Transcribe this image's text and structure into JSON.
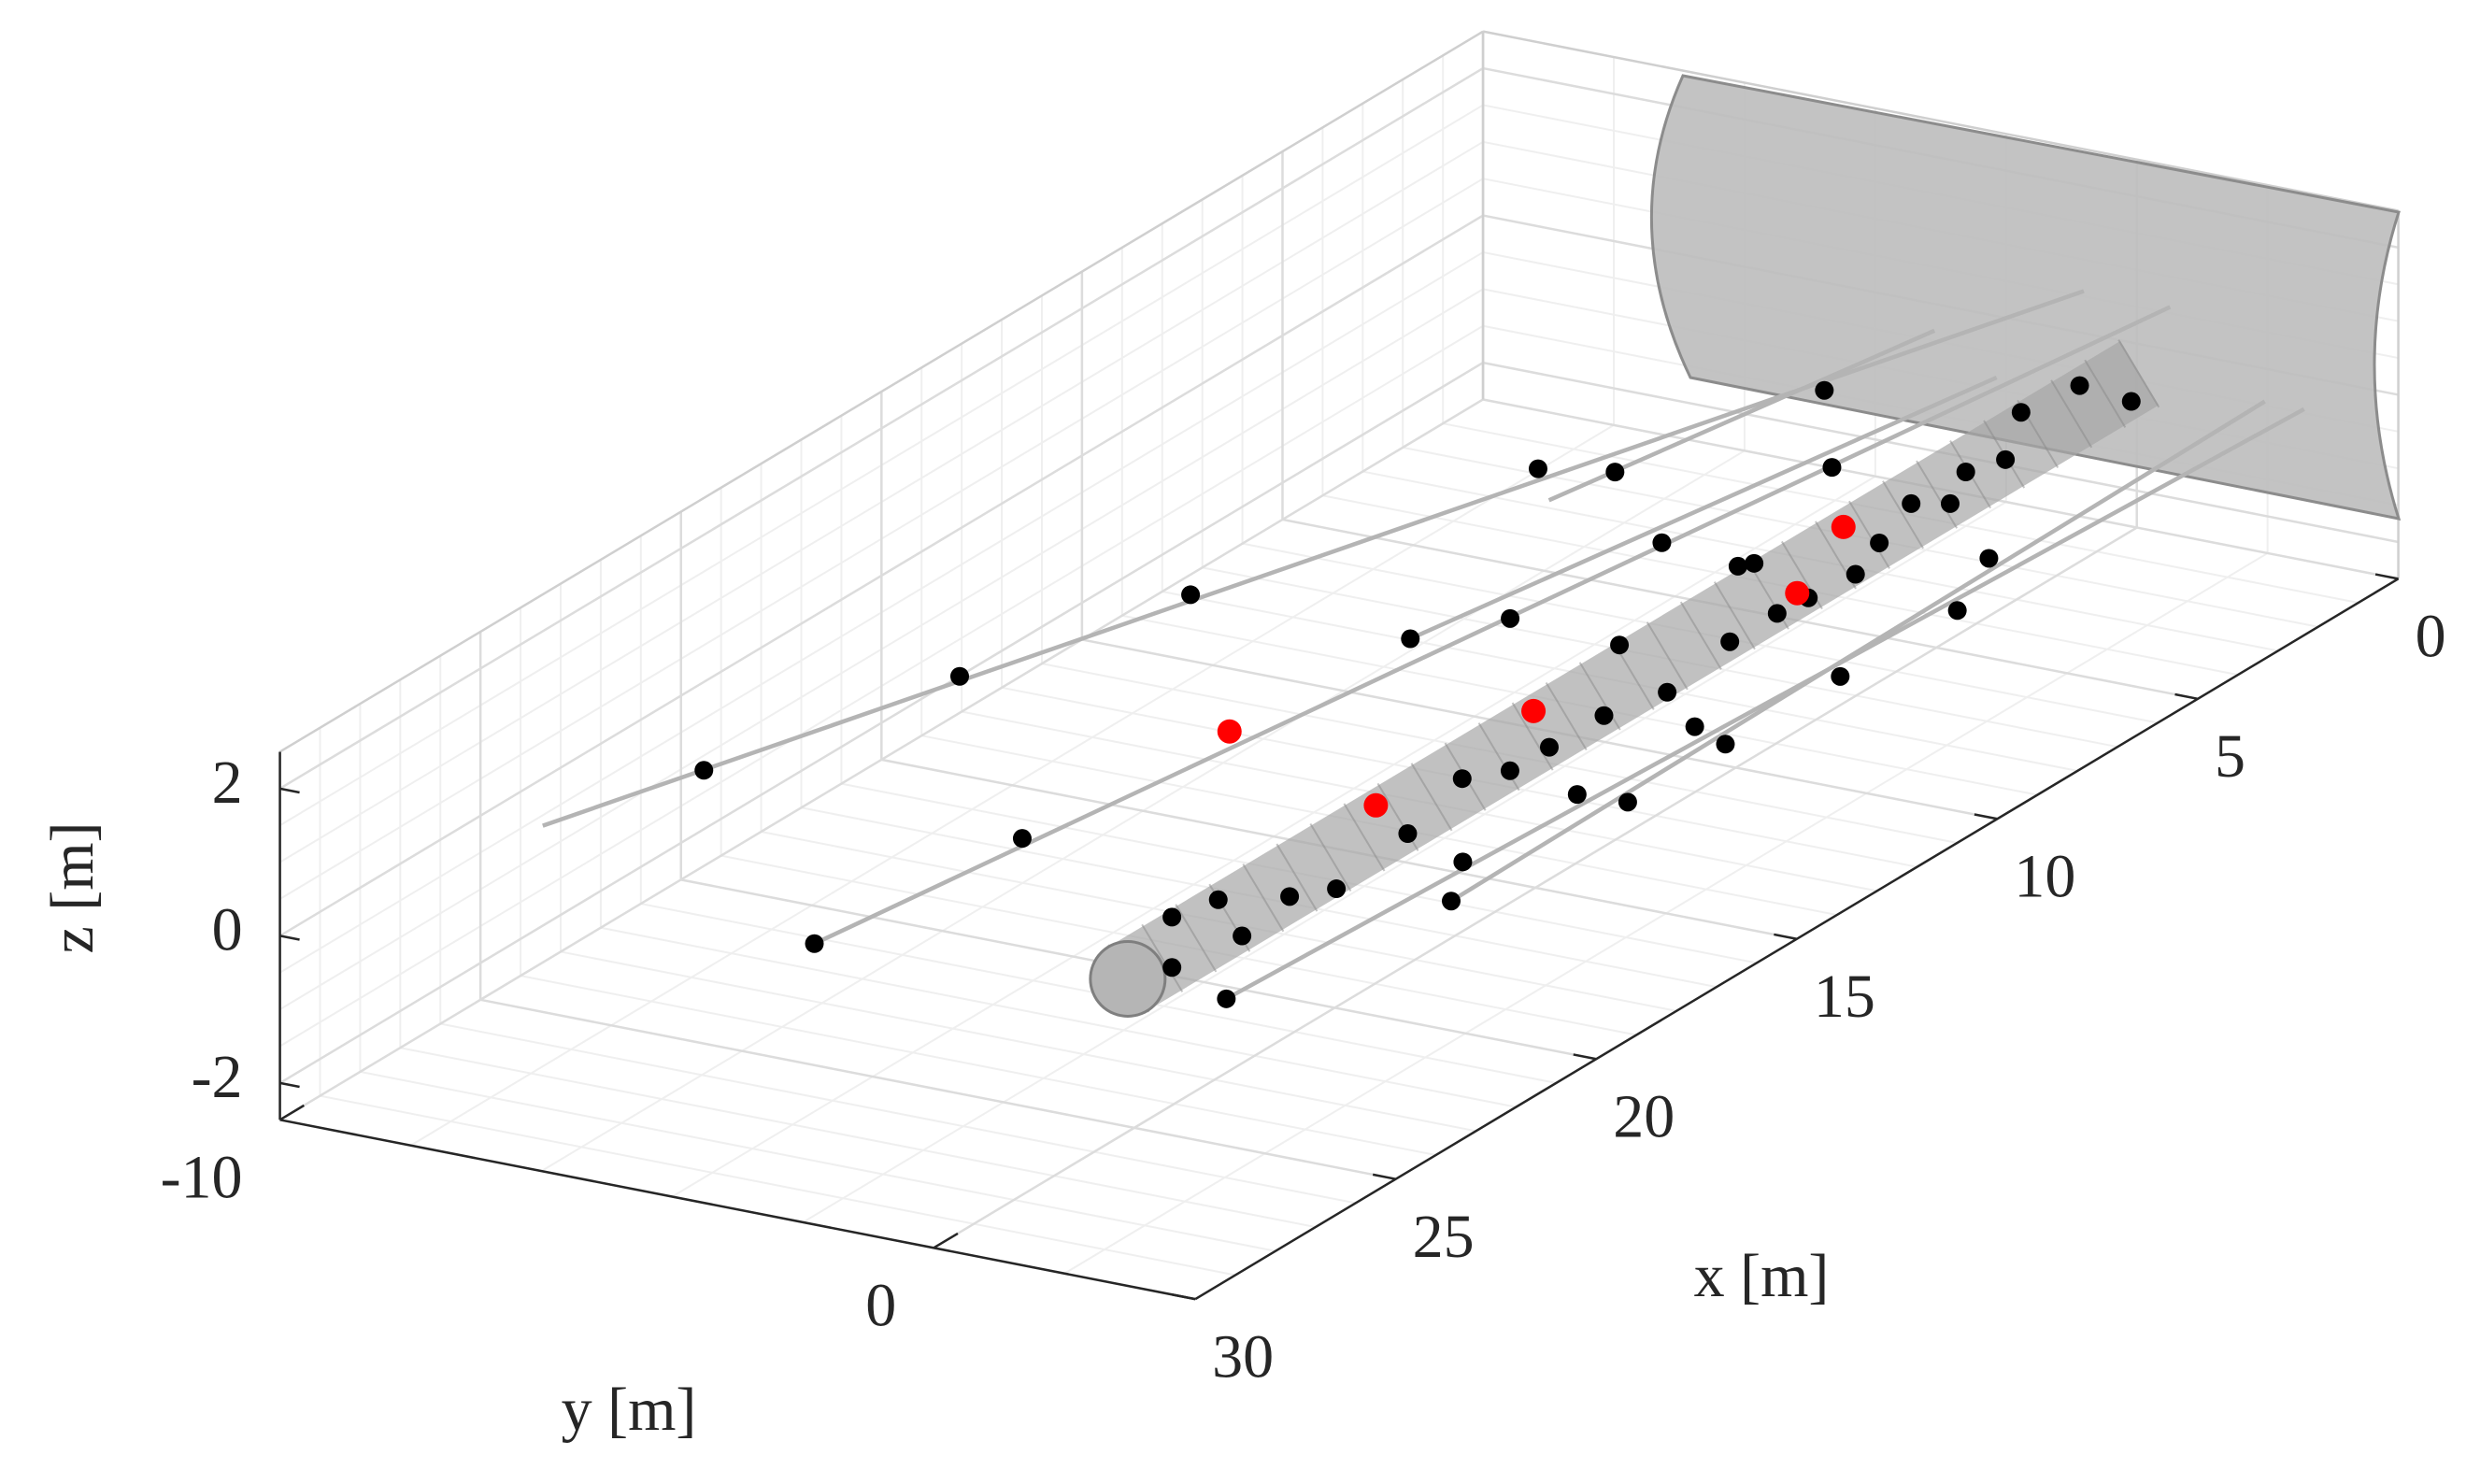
{
  "chart_data": {
    "type": "scatter3d",
    "xlabel": "x [m]",
    "ylabel": "y [m]",
    "zlabel": "z [m]",
    "xlim": [
      0,
      30
    ],
    "ylim": [
      -10,
      4
    ],
    "zlim": [
      -2.5,
      2.5
    ],
    "xticks": [
      0,
      5,
      10,
      15,
      20,
      25,
      30
    ],
    "yticks": [
      -10,
      0
    ],
    "zticks": [
      -2,
      0,
      2
    ],
    "grid": true,
    "series": [
      {
        "mode": "line",
        "color": "#b4b4b4",
        "x": [
          -1.32,
          24.93
        ],
        "y": [
          -1.62,
          -9.09
        ],
        "z": [
          0,
          0
        ]
      },
      {
        "mode": "line",
        "color": "#b4b4b4",
        "x": [
          0.84,
          8.53
        ],
        "y": [
          -2.58,
          -3.76
        ],
        "z": [
          0,
          0
        ]
      },
      {
        "mode": "line",
        "color": "#b4b4b4",
        "x": [
          1.93,
          13.73
        ],
        "y": [
          -0.96,
          -2.69
        ],
        "z": [
          0,
          0
        ]
      },
      {
        "mode": "line",
        "color": "#b4b4b4",
        "x": [
          -1.35,
          26.96
        ],
        "y": [
          -0.32,
          -3.69
        ],
        "z": [
          0,
          0
        ]
      },
      {
        "mode": "line",
        "color": "#b4b4b4",
        "x": [
          1.03,
          21.71
        ],
        "y": [
          2.59,
          2.83
        ],
        "z": [
          0,
          0
        ]
      },
      {
        "mode": "line",
        "color": "#b4b4b4",
        "x": [
          1.03,
          26.16
        ],
        "y": [
          3.19,
          2.12
        ],
        "z": [
          0,
          0
        ]
      },
      {
        "mode": "tube",
        "color": "#a6a6a6",
        "x": [
          0.91,
          26.14
        ],
        "y": [
          0.6,
          0.6
        ],
        "z": [
          0,
          0
        ]
      },
      {
        "mode": "markers",
        "color": "#000000",
        "x": [
          3.39,
          7.61,
          7.24,
          5.76,
          9.17,
          9.25,
          13.7,
          13.73,
          12.48,
          17.68,
          22.2,
          22.38,
          26.96,
          7.65,
          9.48,
          12.27,
          14.74,
          15.1,
          17.59,
          17.52,
          20.41,
          21.71,
          26.16,
          9.44,
          10.68,
          1.67,
          1.85,
          2.87,
          4.45,
          6.17,
          6.41,
          7.84,
          8.97,
          10.0,
          11.86,
          12.64,
          13.83,
          14.95,
          16.28,
          17.8,
          19.86,
          22.03,
          22.56,
          23.1,
          24.09,
          23.93,
          25.51,
          17.26,
          5.08
        ],
        "y": [
          -2.7,
          -4.49,
          -3.54,
          -1.13,
          -1.64,
          -0.18,
          -6.07,
          -2.69,
          -1.93,
          -7.16,
          -8.3,
          -3.32,
          -3.69,
          2.43,
          3.07,
          2.99,
          2.28,
          2.97,
          2.23,
          2.96,
          2.21,
          2.83,
          2.12,
          -0.31,
          1.05,
          0.15,
          1.05,
          -0.01,
          0.72,
          0.93,
          0.48,
          0.87,
          1.2,
          1.11,
          1.05,
          -0.16,
          1.3,
          1.02,
          1.0,
          0.6,
          1.03,
          1.27,
          0.88,
          0.12,
          1.09,
          -0.08,
          0.89,
          1.0,
          0.5
        ],
        "z": [
          0,
          0,
          0,
          0,
          0,
          0,
          0,
          0,
          0,
          0,
          0,
          0,
          0,
          0,
          0,
          0,
          0,
          0,
          0,
          0,
          0,
          0,
          0,
          0,
          0,
          0,
          0,
          0,
          0,
          0,
          0,
          0,
          0,
          0,
          0,
          0,
          0,
          0,
          0,
          0,
          0,
          0,
          0,
          0,
          0,
          0,
          0,
          0,
          0
        ]
      },
      {
        "mode": "markers",
        "color": "#ff0000",
        "x": [
          17.75,
          15.24,
          19.17,
          7.56,
          9.92
        ],
        "y": [
          -2.99,
          0.12,
          0.12,
          0.15,
          0.89
        ],
        "z": [
          0,
          0,
          0,
          0,
          0
        ]
      }
    ]
  }
}
